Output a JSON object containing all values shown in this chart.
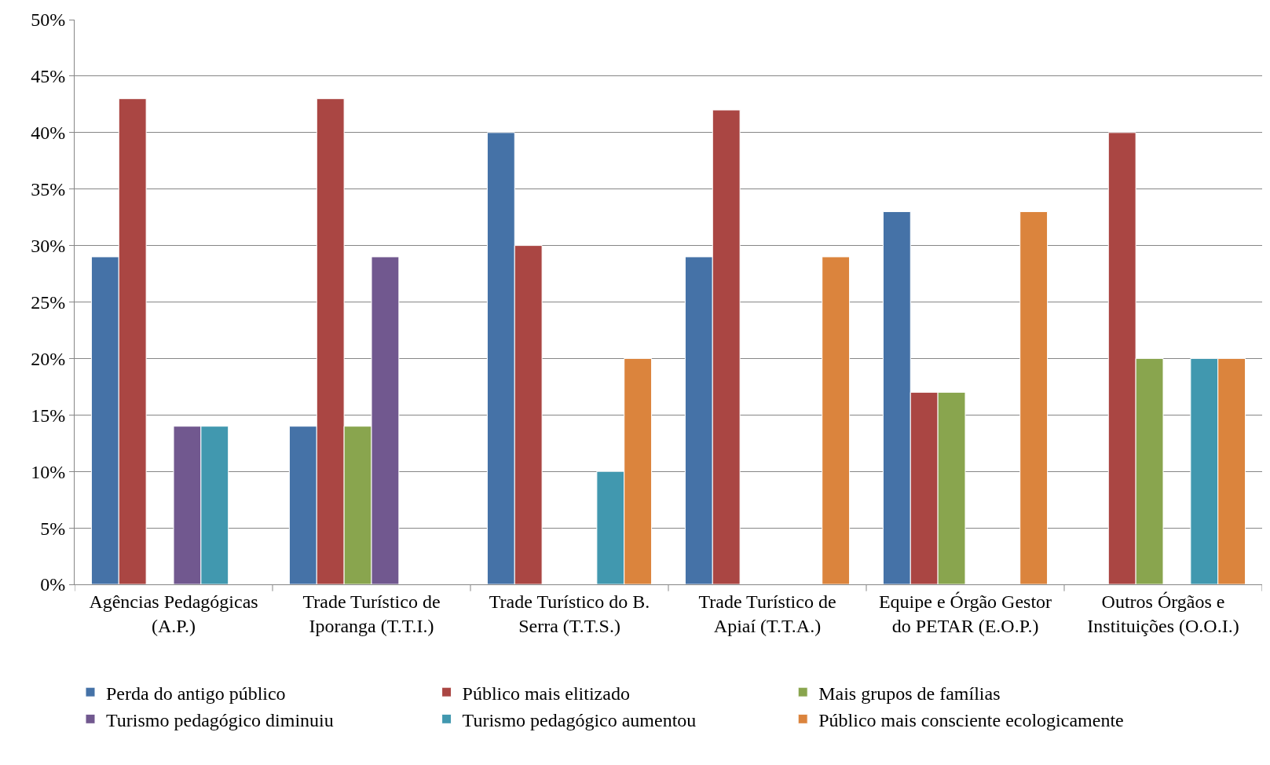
{
  "chart_data": {
    "type": "bar",
    "categories": [
      "Agências Pedagógicas (A.P.)",
      "Trade Turístico de Iporanga (T.T.I.)",
      "Trade Turístico do B. Serra (T.T.S.)",
      "Trade Turístico de Apiaí (T.T.A.)",
      "Equipe e Órgão Gestor do PETAR (E.O.P.)",
      "Outros Órgãos e Instituições (O.O.I.)"
    ],
    "series": [
      {
        "name": "Perda do antigo público",
        "color": "#4572a7",
        "values": [
          29,
          14,
          40,
          29,
          33,
          null
        ]
      },
      {
        "name": "Público mais elitizado",
        "color": "#aa4643",
        "values": [
          43,
          43,
          30,
          42,
          17,
          40
        ]
      },
      {
        "name": "Mais grupos de famílias",
        "color": "#89a54e",
        "values": [
          null,
          14,
          null,
          null,
          17,
          20
        ]
      },
      {
        "name": "Turismo pedagógico diminuiu",
        "color": "#71588f",
        "values": [
          14,
          29,
          null,
          null,
          null,
          null
        ]
      },
      {
        "name": "Turismo pedagógico aumentou",
        "color": "#4198af",
        "values": [
          14,
          null,
          10,
          null,
          null,
          20
        ]
      },
      {
        "name": "Público mais consciente ecologicamente",
        "color": "#db843d",
        "values": [
          null,
          null,
          20,
          29,
          33,
          20
        ]
      }
    ],
    "ylim": [
      0,
      50
    ],
    "yticks": [
      {
        "value": 0,
        "label": "0%"
      },
      {
        "value": 5,
        "label": "5%"
      },
      {
        "value": 10,
        "label": "10%"
      },
      {
        "value": 15,
        "label": "15%"
      },
      {
        "value": 20,
        "label": "20%"
      },
      {
        "value": 25,
        "label": "25%"
      },
      {
        "value": 30,
        "label": "30%"
      },
      {
        "value": 35,
        "label": "35%"
      },
      {
        "value": 40,
        "label": "40%"
      },
      {
        "value": 45,
        "label": "45%"
      },
      {
        "value": 50,
        "label": "50%"
      }
    ],
    "grid": "y",
    "legend": "bottom"
  }
}
